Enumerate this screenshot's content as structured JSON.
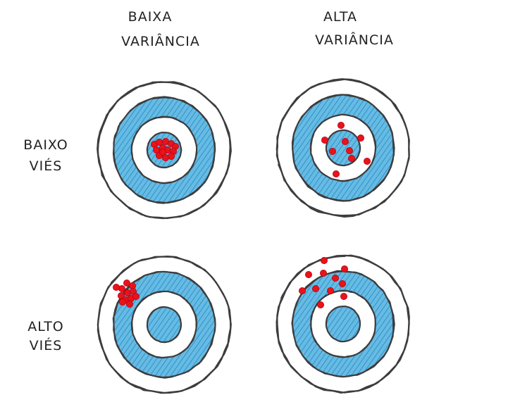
{
  "columns": [
    {
      "line1": "BAIXA",
      "line2": "VARIÂNCIA"
    },
    {
      "line1": "ALTA",
      "line2": "VARIÂNCIA"
    }
  ],
  "rows": [
    {
      "line1": "BAIXO",
      "line2": "VIÉS"
    },
    {
      "line1": "ALTO",
      "line2": "VIÉS"
    }
  ],
  "colors": {
    "ring": "#3d3d3d",
    "blue": "#5bb3df",
    "blue_hatch": "#2f93cc",
    "hit": "#e8131b",
    "hit_hatch": "#b50010"
  },
  "targets": [
    {
      "name": "low-bias-low-variance",
      "hits": 13
    },
    {
      "name": "low-bias-high-variance",
      "hits": 9
    },
    {
      "name": "high-bias-low-variance",
      "hits": 12
    },
    {
      "name": "high-bias-high-variance",
      "hits": 11
    }
  ]
}
